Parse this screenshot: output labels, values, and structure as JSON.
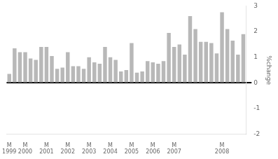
{
  "chart_data": {
    "type": "bar",
    "categories": [
      "M 1999",
      null,
      null,
      "M 2000",
      null,
      null,
      null,
      "M 2001",
      null,
      null,
      null,
      "M 2002",
      null,
      null,
      null,
      "M 2003",
      null,
      null,
      null,
      "M 2004",
      null,
      null,
      null,
      "M 2005",
      null,
      null,
      null,
      "M 2006",
      null,
      null,
      null,
      "M 2007",
      null,
      null,
      null,
      null,
      null,
      null,
      null,
      null,
      "M 2008",
      null,
      null,
      null,
      null
    ],
    "values": [
      0.35,
      1.35,
      1.2,
      1.2,
      0.95,
      0.9,
      1.4,
      1.4,
      1.05,
      0.55,
      0.6,
      1.2,
      0.65,
      0.65,
      0.55,
      1.0,
      0.8,
      0.75,
      1.4,
      1.0,
      0.9,
      0.45,
      0.5,
      1.55,
      0.4,
      0.45,
      0.85,
      0.8,
      0.75,
      0.85,
      1.95,
      1.4,
      1.5,
      1.1,
      2.6,
      2.1,
      1.6,
      1.6,
      1.55,
      1.15,
      2.75,
      2.1,
      1.65,
      1.1,
      1.9
    ],
    "color": "#b8b8b8",
    "ylabel": "%change",
    "ylim": [
      -2,
      3
    ],
    "yticks": [
      -2,
      -1,
      0,
      1,
      2,
      3
    ],
    "grid": false
  }
}
